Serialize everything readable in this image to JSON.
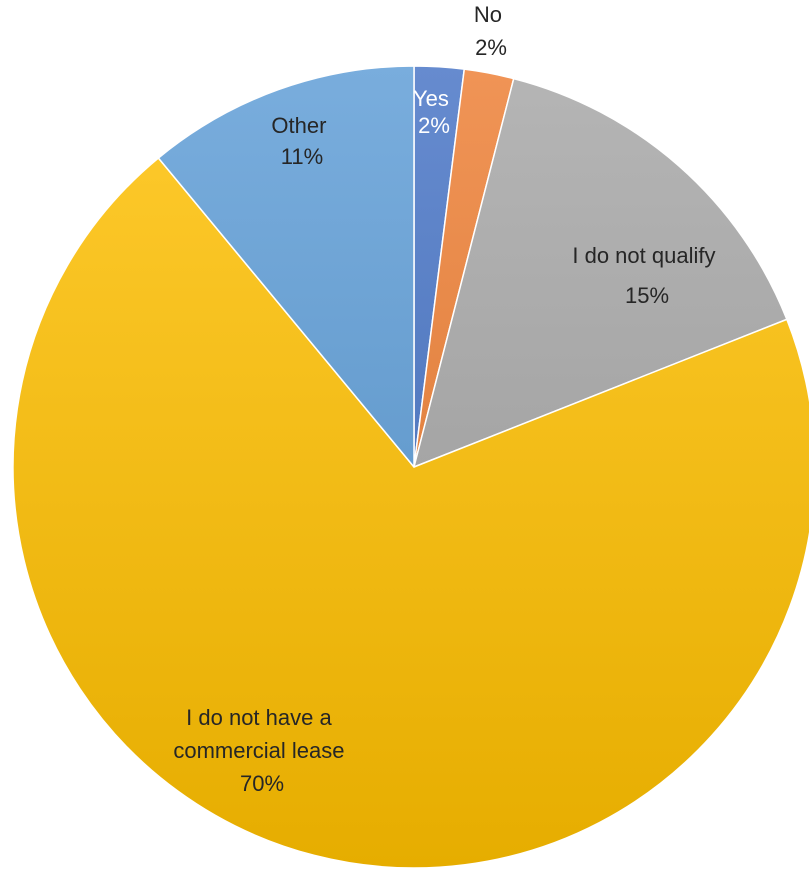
{
  "chart_data": {
    "type": "pie",
    "slices": [
      {
        "label": "Yes",
        "value": 2,
        "value_label": "2%",
        "color": "#4472C4",
        "label_color": "#ffffff"
      },
      {
        "label": "No",
        "value": 2,
        "value_label": "2%",
        "color": "#ED7D31",
        "label_color": "#262626"
      },
      {
        "label": "I do not qualify",
        "value": 15,
        "value_label": "15%",
        "color": "#A5A5A5",
        "label_color": "#262626"
      },
      {
        "label": "I do not have a commercial lease",
        "label_lines": [
          "I do not have a",
          "commercial lease"
        ],
        "value": 70,
        "value_label": "70%",
        "color": "#FFC000",
        "label_color": "#262626"
      },
      {
        "label": "Other",
        "value": 11,
        "value_label": "11%",
        "color": "#5B9BD5",
        "label_color": "#262626"
      }
    ],
    "start_angle": "12 o'clock",
    "direction": "clockwise",
    "gradient": true,
    "legend": "none"
  }
}
